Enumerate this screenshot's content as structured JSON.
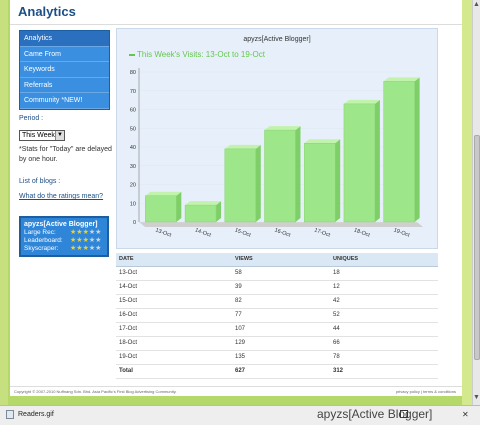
{
  "header": {
    "title": "Analytics"
  },
  "nav": {
    "items": [
      {
        "label": "Analytics"
      },
      {
        "label": "Came From"
      },
      {
        "label": "Keywords"
      },
      {
        "label": "Referrals"
      },
      {
        "label": "Community *NEW!"
      }
    ]
  },
  "period": {
    "label": "Period :",
    "selected": "This Week",
    "note": "*Stats for \"Today\" are delayed by one hour."
  },
  "blogs": {
    "label": "List of blogs :",
    "ratings_link": "What do the ratings mean?",
    "card": {
      "title": "apyzs[Active Blogger]",
      "ratings": [
        {
          "label": "Large Rec:",
          "stars": 3
        },
        {
          "label": "Leaderboard:",
          "stars": 3
        },
        {
          "label": "Skyscraper:",
          "stars": 3
        }
      ]
    }
  },
  "chart_data": {
    "type": "bar",
    "title": "apyzs[Active Blogger]",
    "series": [
      {
        "name": "This Week's Visits: 13-Oct to 19-Oct",
        "values": [
          14,
          9,
          39,
          49,
          42,
          63,
          75
        ]
      }
    ],
    "categories": [
      "13-Oct",
      "14-Oct",
      "15-Oct",
      "16-Oct",
      "17-Oct",
      "18-Oct",
      "19-Oct"
    ],
    "yticks": [
      0,
      10,
      20,
      30,
      40,
      50,
      60,
      70,
      80
    ],
    "ylim": [
      0,
      80
    ],
    "bar_color": "#9ee68a"
  },
  "table": {
    "headers": {
      "date": "DATE",
      "views": "VIEWS",
      "uniques": "UNIQUES"
    },
    "rows": [
      {
        "date": "13-Oct",
        "views": "58",
        "uniques": "18"
      },
      {
        "date": "14-Oct",
        "views": "39",
        "uniques": "12"
      },
      {
        "date": "15-Oct",
        "views": "82",
        "uniques": "42"
      },
      {
        "date": "16-Oct",
        "views": "77",
        "uniques": "52"
      },
      {
        "date": "17-Oct",
        "views": "107",
        "uniques": "44"
      },
      {
        "date": "18-Oct",
        "views": "129",
        "uniques": "66"
      },
      {
        "date": "19-Oct",
        "views": "135",
        "uniques": "78"
      }
    ],
    "total": {
      "label": "Total",
      "views": "627",
      "uniques": "312"
    }
  },
  "footer": {
    "copyright": "Copyright © 2007-2010 Nuffnang Sdn. Bhd. Asia Pacific's First Blog Advertising Community.",
    "links": "privacy policy | terms & conditions"
  },
  "taskbar": {
    "file": "Readers.gif"
  },
  "caption": "apyzs[Active Blogger]"
}
